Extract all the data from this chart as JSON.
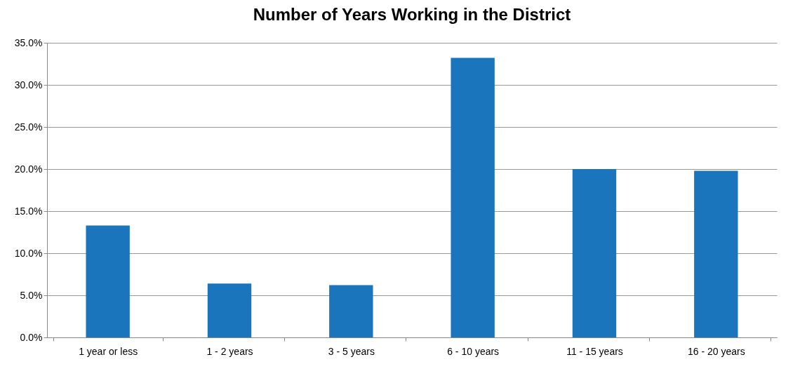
{
  "chart_data": {
    "type": "bar",
    "title": "Number of Years Working in the District",
    "categories": [
      "1 year or less",
      "1 - 2 years",
      "3 - 5 years",
      "6 - 10 years",
      "11 - 15 years",
      "16 - 20 years"
    ],
    "values": [
      13.3,
      6.4,
      6.2,
      33.2,
      20.0,
      19.8
    ],
    "color": "#1b75bc",
    "ylim": [
      0,
      35
    ],
    "yticks": [
      {
        "value": 0,
        "label": "0.0%"
      },
      {
        "value": 5,
        "label": "5.0%"
      },
      {
        "value": 10,
        "label": "10.0%"
      },
      {
        "value": 15,
        "label": "15.0%"
      },
      {
        "value": 20,
        "label": "20.0%"
      },
      {
        "value": 25,
        "label": "25.0%"
      },
      {
        "value": 30,
        "label": "30.0%"
      },
      {
        "value": 35,
        "label": "35.0%"
      }
    ],
    "grid": "y"
  }
}
